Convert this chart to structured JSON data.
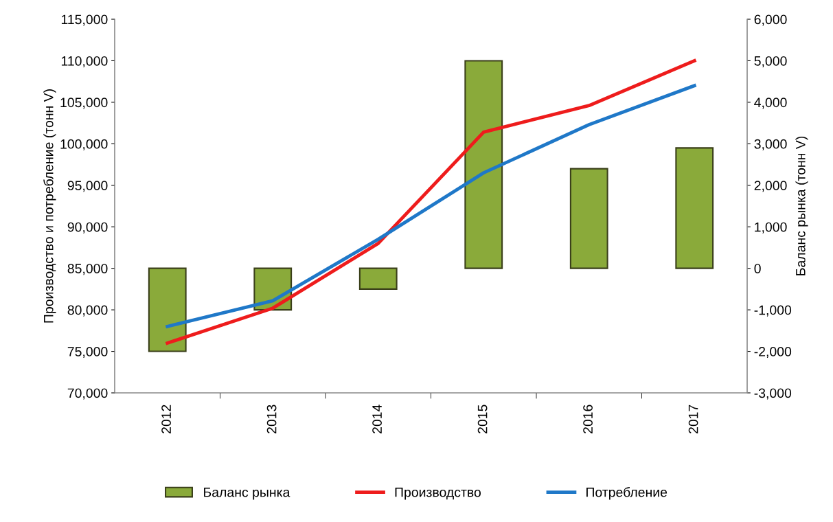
{
  "chart_data": {
    "type": "bar",
    "categories": [
      "2012",
      "2013",
      "2014",
      "2015",
      "2016",
      "2017"
    ],
    "ylabel": "Производство и потребление (тонн V)",
    "y2label": "Баланс рынка (тонн V)",
    "series": [
      {
        "name": "Баланс рынка",
        "axis": "y2",
        "color": "#8aaa3a",
        "values": [
          -2000,
          -1000,
          -500,
          5000,
          2400,
          2900
        ]
      },
      {
        "name": "Производство",
        "type": "line",
        "color": "#ee1c1c",
        "values": [
          76000,
          80200,
          88000,
          101400,
          104600,
          110000
        ]
      },
      {
        "name": "Потребление",
        "type": "line",
        "color": "#1f78c8",
        "values": [
          78000,
          81100,
          88500,
          96500,
          102300,
          107000
        ]
      }
    ],
    "ylim": [
      70000,
      115000
    ],
    "yticks": [
      {
        "value": 70000,
        "label": "70,000"
      },
      {
        "value": 75000,
        "label": "75,000"
      },
      {
        "value": 80000,
        "label": "80,000"
      },
      {
        "value": 85000,
        "label": "85,000"
      },
      {
        "value": 90000,
        "label": "90,000"
      },
      {
        "value": 95000,
        "label": "95,000"
      },
      {
        "value": 100000,
        "label": "100,000"
      },
      {
        "value": 105000,
        "label": "105,000"
      },
      {
        "value": 110000,
        "label": "110,000"
      },
      {
        "value": 115000,
        "label": "115,000"
      }
    ],
    "y2lim": [
      -3000,
      6000
    ],
    "y2ticks": [
      {
        "value": -3000,
        "label": "-3,000"
      },
      {
        "value": -2000,
        "label": "-2,000"
      },
      {
        "value": -1000,
        "label": "-1,000"
      },
      0,
      {
        "value": 1000,
        "label": "1,000"
      },
      {
        "value": 2000,
        "label": "2,000"
      },
      {
        "value": 3000,
        "label": "3,000"
      },
      {
        "value": 4000,
        "label": "4,000"
      },
      {
        "value": 5000,
        "label": "5,000"
      },
      {
        "value": 6000,
        "label": "6,000"
      }
    ],
    "legend": "bottom",
    "grid": false
  }
}
